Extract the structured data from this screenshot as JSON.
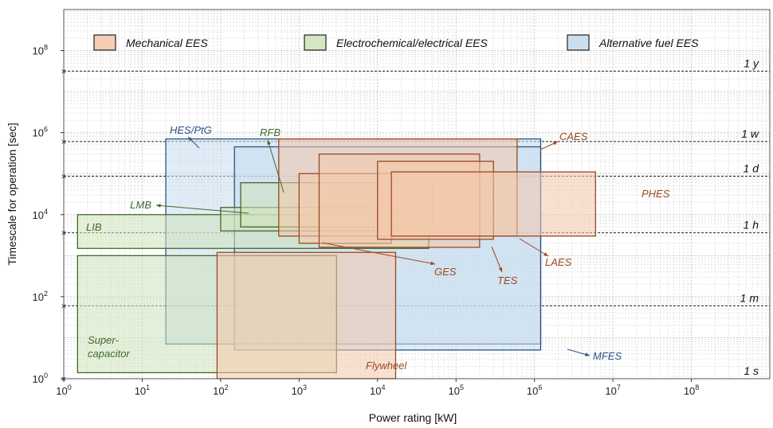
{
  "chart_data": {
    "type": "range-box",
    "xlabel": "Power rating [kW]",
    "ylabel": "Timescale for operation [sec]",
    "x_scale": "log",
    "y_scale": "log",
    "xlim": [
      1,
      1000000000
    ],
    "ylim": [
      1,
      1000000000
    ],
    "grid": true,
    "x_ticks": [
      {
        "value": 1,
        "base": "10",
        "exp": "0"
      },
      {
        "value": 10,
        "base": "10",
        "exp": "1"
      },
      {
        "value": 100,
        "base": "10",
        "exp": "2"
      },
      {
        "value": 1000,
        "base": "10",
        "exp": "3"
      },
      {
        "value": 10000,
        "base": "10",
        "exp": "4"
      },
      {
        "value": 100000,
        "base": "10",
        "exp": "5"
      },
      {
        "value": 1000000,
        "base": "10",
        "exp": "6"
      },
      {
        "value": 10000000,
        "base": "10",
        "exp": "7"
      },
      {
        "value": 100000000,
        "base": "10",
        "exp": "8"
      }
    ],
    "y_ticks": [
      {
        "value": 1,
        "base": "10",
        "exp": "0"
      },
      {
        "value": 100,
        "base": "10",
        "exp": "2"
      },
      {
        "value": 10000,
        "base": "10",
        "exp": "4"
      },
      {
        "value": 1000000,
        "base": "10",
        "exp": "6"
      },
      {
        "value": 100000000,
        "base": "10",
        "exp": "8"
      }
    ],
    "categories": [
      {
        "name": "Mechanical EES",
        "fill": "#f4c9ac",
        "stroke": "#2b2b2b",
        "label_color": "#9a4a22"
      },
      {
        "name": "Electrochemical/electrical EES",
        "fill": "#cfe3bc",
        "stroke": "#2b2b2b",
        "label_color": "#3f6a2a"
      },
      {
        "name": "Alternative fuel EES",
        "fill": "#c6dcef",
        "stroke": "#2b2b2b",
        "label_color": "#2c5383"
      }
    ],
    "reference_lines": [
      {
        "label": "1 y",
        "value": 31536000
      },
      {
        "label": "1 w",
        "value": 604800
      },
      {
        "label": "1 d",
        "value": 86400
      },
      {
        "label": "1 h",
        "value": 3600
      },
      {
        "label": "1 m",
        "value": 60
      },
      {
        "label": "1 s",
        "value": 1
      }
    ],
    "series": [
      {
        "name": "HES/PtG",
        "category": "Alternative fuel EES",
        "x_range": [
          20,
          1200000
        ],
        "y_range": [
          7,
          700000
        ]
      },
      {
        "name": "MFES",
        "category": "Alternative fuel EES",
        "x_range": [
          150,
          1200000
        ],
        "y_range": [
          5,
          450000
        ]
      },
      {
        "name": "Supercapacitor",
        "category": "Electrochemical/electrical EES",
        "x_range": [
          1.5,
          3000
        ],
        "y_range": [
          1.4,
          1000
        ]
      },
      {
        "name": "Flywheel",
        "category": "Mechanical EES",
        "x_range": [
          90,
          17000
        ],
        "y_range": [
          1,
          1200
        ]
      },
      {
        "name": "LIB",
        "category": "Electrochemical/electrical EES",
        "x_range": [
          1.5,
          45000
        ],
        "y_range": [
          1500,
          10000
        ]
      },
      {
        "name": "LMB",
        "category": "Electrochemical/electrical EES",
        "x_range": [
          100,
          9000
        ],
        "y_range": [
          4000,
          15000
        ]
      },
      {
        "name": "RFB",
        "category": "Electrochemical/electrical EES",
        "x_range": [
          180,
          50000
        ],
        "y_range": [
          5000,
          60000
        ]
      },
      {
        "name": "CAES",
        "category": "Mechanical EES",
        "x_range": [
          550,
          600000
        ],
        "y_range": [
          3000,
          700000
        ]
      },
      {
        "name": "GES",
        "category": "Mechanical EES",
        "x_range": [
          1000,
          15000
        ],
        "y_range": [
          2000,
          100000
        ]
      },
      {
        "name": "TES",
        "category": "Mechanical EES",
        "x_range": [
          1800,
          200000
        ],
        "y_range": [
          1600,
          300000
        ]
      },
      {
        "name": "LAES",
        "category": "Mechanical EES",
        "x_range": [
          10000,
          300000
        ],
        "y_range": [
          2500,
          200000
        ]
      },
      {
        "name": "PHES",
        "category": "Mechanical EES",
        "x_range": [
          15000,
          6000000
        ],
        "y_range": [
          3000,
          110000
        ]
      }
    ]
  }
}
